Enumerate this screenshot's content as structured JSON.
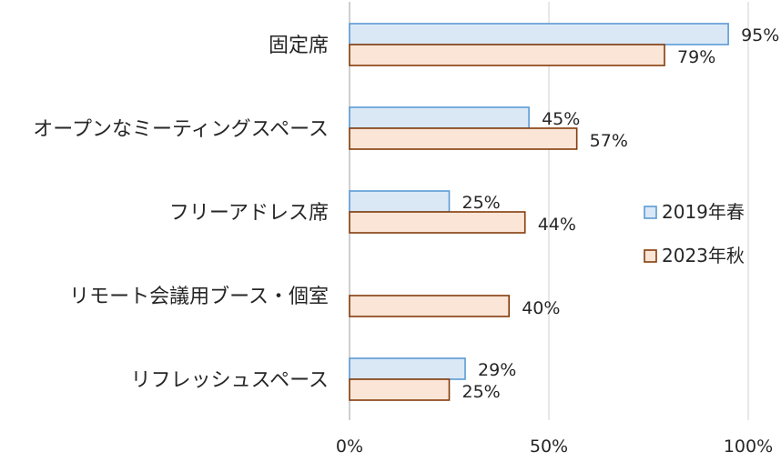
{
  "chart_data": {
    "type": "bar",
    "orientation": "horizontal",
    "categories": [
      "固定席",
      "オープンなミーティングスペース",
      "フリーアドレス席",
      "リモート会議用ブース・個室",
      "リフレッシュスペース"
    ],
    "series": [
      {
        "name": "2019年春",
        "values": [
          95,
          45,
          25,
          null,
          29
        ],
        "labels": [
          "95%",
          "45%",
          "25%",
          "",
          "29%"
        ],
        "fill": "#dae8f5",
        "stroke": "#5b9bd5"
      },
      {
        "name": "2023年秋",
        "values": [
          79,
          57,
          44,
          40,
          25
        ],
        "labels": [
          "79%",
          "57%",
          "44%",
          "40%",
          "25%"
        ],
        "fill": "#fbe5d6",
        "stroke": "#843c0c"
      }
    ],
    "xlim": [
      0,
      100
    ],
    "x_ticks": [
      0,
      50,
      100
    ],
    "x_tick_labels": [
      "0%",
      "50%",
      "100%"
    ],
    "title": "",
    "xlabel": "",
    "ylabel": "",
    "grid": "vertical",
    "legend_position": "right"
  }
}
